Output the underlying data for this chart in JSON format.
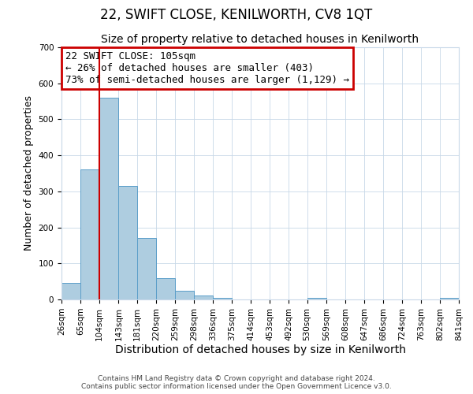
{
  "title": "22, SWIFT CLOSE, KENILWORTH, CV8 1QT",
  "subtitle": "Size of property relative to detached houses in Kenilworth",
  "xlabel": "Distribution of detached houses by size in Kenilworth",
  "ylabel": "Number of detached properties",
  "bin_edges": [
    26,
    65,
    104,
    143,
    181,
    220,
    259,
    298,
    336,
    375,
    414,
    453,
    492,
    530,
    569,
    608,
    647,
    686,
    724,
    763,
    802,
    841
  ],
  "bar_heights": [
    45,
    360,
    560,
    315,
    170,
    60,
    25,
    10,
    5,
    0,
    0,
    0,
    0,
    5,
    0,
    0,
    0,
    0,
    0,
    0,
    5,
    0
  ],
  "bar_color": "#aecde0",
  "bar_edge_color": "#5b9ec9",
  "vline_x": 104,
  "vline_color": "#cc0000",
  "ylim": [
    0,
    700
  ],
  "yticks": [
    0,
    100,
    200,
    300,
    400,
    500,
    600,
    700
  ],
  "annotation_title": "22 SWIFT CLOSE: 105sqm",
  "annotation_line1": "← 26% of detached houses are smaller (403)",
  "annotation_line2": "73% of semi-detached houses are larger (1,129) →",
  "annotation_box_color": "#cc0000",
  "annotation_text_color": "#000000",
  "grid_color": "#c8d8e8",
  "background_color": "#ffffff",
  "footer_line1": "Contains HM Land Registry data © Crown copyright and database right 2024.",
  "footer_line2": "Contains public sector information licensed under the Open Government Licence v3.0.",
  "title_fontsize": 12,
  "subtitle_fontsize": 10,
  "xlabel_fontsize": 10,
  "ylabel_fontsize": 9,
  "tick_fontsize": 7.5,
  "annotation_fontsize": 9,
  "footer_fontsize": 6.5
}
